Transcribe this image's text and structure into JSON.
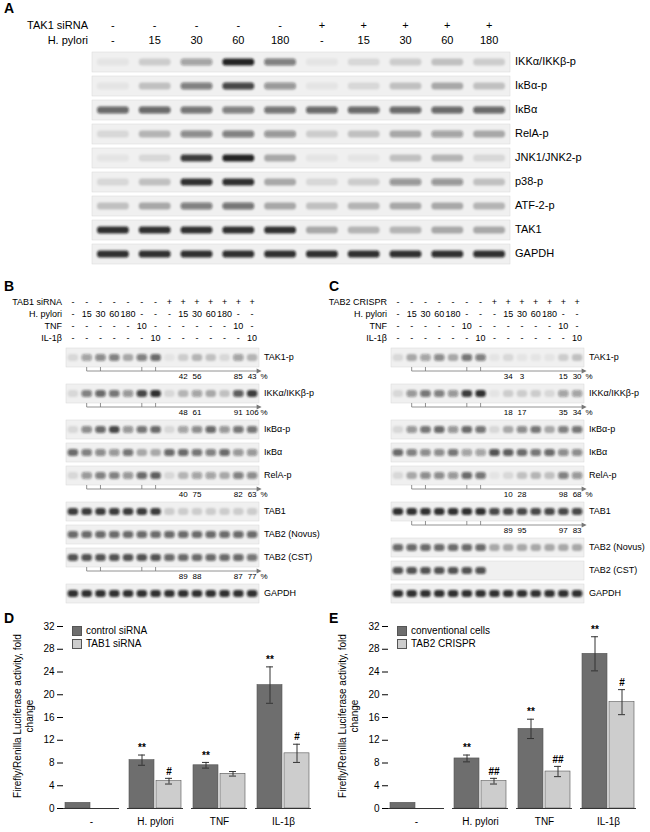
{
  "blots": {
    "panels": [
      {
        "label": "A",
        "conditions": [
          {
            "name": "TAK1 siRNA",
            "lanes": [
              "-",
              "-",
              "-",
              "-",
              "-",
              "+",
              "+",
              "+",
              "+",
              "+"
            ]
          },
          {
            "name": "H. pylori",
            "lanes": [
              "-",
              "15",
              "30",
              "60",
              "180",
              "-",
              "15",
              "30",
              "60",
              "180"
            ]
          }
        ],
        "rows": [
          {
            "name": "IKKα/IKKβ-p",
            "bands": [
              0.05,
              0.15,
              0.35,
              0.9,
              0.5,
              0.05,
              0.1,
              0.15,
              0.2,
              0.15
            ]
          },
          {
            "name": "IκBα-p",
            "bands": [
              0.05,
              0.2,
              0.5,
              0.75,
              0.4,
              0.05,
              0.1,
              0.2,
              0.3,
              0.2
            ]
          },
          {
            "name": "IκBα",
            "bands": [
              0.6,
              0.6,
              0.55,
              0.5,
              0.55,
              0.6,
              0.6,
              0.6,
              0.6,
              0.6
            ]
          },
          {
            "name": "RelA-p",
            "bands": [
              0.1,
              0.25,
              0.45,
              0.5,
              0.4,
              0.15,
              0.2,
              0.3,
              0.35,
              0.3
            ]
          },
          {
            "name": "JNK1/JNK2-p",
            "bands": [
              0.05,
              0.1,
              0.8,
              0.9,
              0.3,
              0.05,
              0.05,
              0.2,
              0.25,
              0.1
            ]
          },
          {
            "name": "p38-p",
            "bands": [
              0.1,
              0.2,
              0.85,
              0.85,
              0.3,
              0.1,
              0.15,
              0.4,
              0.4,
              0.2
            ]
          },
          {
            "name": "ATF-2-p",
            "bands": [
              0.2,
              0.3,
              0.5,
              0.55,
              0.3,
              0.2,
              0.25,
              0.3,
              0.3,
              0.25
            ]
          },
          {
            "name": "TAK1",
            "bands": [
              0.85,
              0.85,
              0.85,
              0.85,
              0.85,
              0.3,
              0.25,
              0.25,
              0.3,
              0.3
            ]
          },
          {
            "name": "GAPDH",
            "bands": [
              0.85,
              0.85,
              0.85,
              0.85,
              0.85,
              0.85,
              0.85,
              0.85,
              0.85,
              0.85
            ]
          }
        ]
      },
      {
        "label": "B",
        "conditions": [
          {
            "name": "TAB1 siRNA",
            "lanes": [
              "-",
              "-",
              "-",
              "-",
              "-",
              "-",
              "-",
              "+",
              "+",
              "+",
              "+",
              "+",
              "+",
              "+"
            ]
          },
          {
            "name": "H. pylori",
            "lanes": [
              "-",
              "15",
              "30",
              "60",
              "180",
              "-",
              "-",
              "-",
              "15",
              "30",
              "60",
              "180",
              "-",
              "-"
            ]
          },
          {
            "name": "TNF",
            "lanes": [
              "-",
              "-",
              "-",
              "-",
              "-",
              "10",
              "-",
              "-",
              "-",
              "-",
              "-",
              "-",
              "10",
              "-"
            ]
          },
          {
            "name": "IL-1β",
            "lanes": [
              "-",
              "-",
              "-",
              "-",
              "-",
              "-",
              "10",
              "-",
              "-",
              "-",
              "-",
              "-",
              "-",
              "10"
            ]
          }
        ],
        "rows": [
          {
            "name": "TAK1-p",
            "bands": [
              0.1,
              0.35,
              0.45,
              0.5,
              0.3,
              0.5,
              0.6,
              0.05,
              0.15,
              0.25,
              0.2,
              0.1,
              0.35,
              0.25
            ],
            "quantification": {
              "values": [
                null,
                null,
                null,
                null,
                null,
                null,
                null,
                null,
                42,
                56,
                null,
                null,
                85,
                43
              ],
              "unit": "%"
            }
          },
          {
            "name": "IKKα/IKKβ-p",
            "bands": [
              0.1,
              0.5,
              0.6,
              0.55,
              0.4,
              0.75,
              0.85,
              0.1,
              0.25,
              0.35,
              0.3,
              0.2,
              0.65,
              0.8
            ],
            "quantification": {
              "values": [
                null,
                null,
                null,
                null,
                null,
                null,
                null,
                null,
                48,
                61,
                null,
                null,
                91,
                106
              ],
              "unit": "%"
            }
          },
          {
            "name": "IκBα-p",
            "bands": [
              0.1,
              0.45,
              0.6,
              0.75,
              0.4,
              0.55,
              0.6,
              0.1,
              0.35,
              0.45,
              0.6,
              0.4,
              0.55,
              0.55
            ]
          },
          {
            "name": "IκBα",
            "bands": [
              0.6,
              0.5,
              0.45,
              0.4,
              0.55,
              0.3,
              0.3,
              0.6,
              0.6,
              0.55,
              0.5,
              0.6,
              0.4,
              0.4
            ]
          },
          {
            "name": "RelA-p",
            "bands": [
              0.1,
              0.4,
              0.5,
              0.5,
              0.4,
              0.6,
              0.65,
              0.1,
              0.25,
              0.35,
              0.35,
              0.3,
              0.5,
              0.45
            ],
            "quantification": {
              "values": [
                null,
                null,
                null,
                null,
                null,
                null,
                null,
                null,
                40,
                75,
                null,
                null,
                82,
                63
              ],
              "unit": "%"
            }
          },
          {
            "name": "TAB1",
            "bands": [
              0.8,
              0.8,
              0.8,
              0.8,
              0.8,
              0.8,
              0.8,
              0.15,
              0.15,
              0.15,
              0.15,
              0.15,
              0.15,
              0.15
            ]
          },
          {
            "name": "TAB2 (Novus)",
            "bands": [
              0.6,
              0.6,
              0.6,
              0.6,
              0.6,
              0.6,
              0.6,
              0.6,
              0.6,
              0.6,
              0.6,
              0.6,
              0.6,
              0.6
            ]
          },
          {
            "name": "TAB2 (CST)",
            "bands": [
              0.7,
              0.7,
              0.7,
              0.7,
              0.7,
              0.7,
              0.7,
              0.6,
              0.6,
              0.6,
              0.6,
              0.6,
              0.6,
              0.55
            ],
            "quantification": {
              "values": [
                null,
                null,
                null,
                null,
                null,
                null,
                null,
                null,
                89,
                88,
                null,
                null,
                87,
                77
              ],
              "unit": "%"
            }
          },
          {
            "name": "GAPDH",
            "bands": [
              0.85,
              0.85,
              0.85,
              0.85,
              0.85,
              0.85,
              0.85,
              0.85,
              0.85,
              0.85,
              0.85,
              0.85,
              0.85,
              0.85
            ]
          }
        ]
      },
      {
        "label": "C",
        "conditions": [
          {
            "name": "TAB2 CRISPR",
            "lanes": [
              "-",
              "-",
              "-",
              "-",
              "-",
              "-",
              "-",
              "+",
              "+",
              "+",
              "+",
              "+",
              "+",
              "+"
            ]
          },
          {
            "name": "H. pylori",
            "lanes": [
              "-",
              "15",
              "30",
              "60",
              "180",
              "-",
              "-",
              "-",
              "15",
              "30",
              "60",
              "180",
              "-",
              "-"
            ]
          },
          {
            "name": "TNF",
            "lanes": [
              "-",
              "-",
              "-",
              "-",
              "-",
              "10",
              "-",
              "-",
              "-",
              "-",
              "-",
              "-",
              "10",
              "-"
            ]
          },
          {
            "name": "IL-1β",
            "lanes": [
              "-",
              "-",
              "-",
              "-",
              "-",
              "-",
              "10",
              "-",
              "-",
              "-",
              "-",
              "-",
              "-",
              "10"
            ]
          }
        ],
        "rows": [
          {
            "name": "TAK1-p",
            "bands": [
              0.1,
              0.3,
              0.35,
              0.45,
              0.3,
              0.55,
              0.5,
              0.05,
              0.1,
              0.05,
              0.05,
              0.05,
              0.15,
              0.2
            ],
            "quantification": {
              "values": [
                null,
                null,
                null,
                null,
                null,
                null,
                null,
                null,
                34,
                3,
                null,
                null,
                15,
                30
              ],
              "unit": "%"
            }
          },
          {
            "name": "IKKα/IKKβ-p",
            "bands": [
              0.1,
              0.4,
              0.55,
              0.5,
              0.4,
              0.8,
              0.85,
              0.05,
              0.15,
              0.15,
              0.15,
              0.1,
              0.35,
              0.35
            ],
            "quantification": {
              "values": [
                null,
                null,
                null,
                null,
                null,
                null,
                null,
                null,
                18,
                17,
                null,
                null,
                35,
                34
              ],
              "unit": "%"
            }
          },
          {
            "name": "IκBα-p",
            "bands": [
              0.1,
              0.4,
              0.55,
              0.6,
              0.4,
              0.6,
              0.55,
              0.1,
              0.3,
              0.45,
              0.55,
              0.3,
              0.5,
              0.55
            ]
          },
          {
            "name": "IκBα",
            "bands": [
              0.6,
              0.5,
              0.45,
              0.45,
              0.55,
              0.35,
              0.35,
              0.7,
              0.65,
              0.6,
              0.55,
              0.6,
              0.45,
              0.45
            ]
          },
          {
            "name": "RelA-p",
            "bands": [
              0.1,
              0.3,
              0.45,
              0.45,
              0.4,
              0.6,
              0.55,
              0.05,
              0.1,
              0.2,
              0.25,
              0.2,
              0.5,
              0.4
            ],
            "quantification": {
              "values": [
                null,
                null,
                null,
                null,
                null,
                null,
                null,
                null,
                10,
                28,
                null,
                null,
                98,
                68
              ],
              "unit": "%"
            }
          },
          {
            "name": "TAB1",
            "bands": [
              0.85,
              0.85,
              0.85,
              0.85,
              0.85,
              0.85,
              0.85,
              0.75,
              0.75,
              0.75,
              0.75,
              0.75,
              0.75,
              0.75
            ],
            "quantification": {
              "values": [
                null,
                null,
                null,
                null,
                null,
                null,
                null,
                null,
                89,
                95,
                null,
                null,
                97,
                83
              ],
              "unit": null
            }
          },
          {
            "name": "TAB2 (Novus)",
            "bands": [
              0.6,
              0.6,
              0.6,
              0.6,
              0.6,
              0.6,
              0.6,
              0.3,
              0.3,
              0.3,
              0.3,
              0.3,
              0.3,
              0.3
            ]
          },
          {
            "name": "TAB2 (CST)",
            "bands": [
              0.7,
              0.7,
              0.7,
              0.7,
              0.7,
              0.7,
              0.7,
              0,
              0,
              0,
              0,
              0,
              0,
              0
            ]
          },
          {
            "name": "GAPDH",
            "bands": [
              0.85,
              0.85,
              0.85,
              0.85,
              0.85,
              0.85,
              0.85,
              0.85,
              0.85,
              0.85,
              0.85,
              0.85,
              0.85,
              0.85
            ]
          }
        ]
      }
    ]
  },
  "chart_data": [
    {
      "type": "bar",
      "title": "D",
      "ylabel": "Firefly/Renilla Luciferase activity, fold change",
      "categories": [
        "-",
        "H. pylori",
        "TNF",
        "IL-1β"
      ],
      "series": [
        {
          "name": "control siRNA",
          "color": "#6e6e6e",
          "values": [
            1,
            8.5,
            7.6,
            21.7
          ],
          "errors": [
            null,
            0.9,
            0.5,
            3.2
          ],
          "significance": [
            null,
            "**",
            "**",
            "**"
          ]
        },
        {
          "name": "TAB1 siRNA",
          "color": "#cdcdcd",
          "values": [
            null,
            4.8,
            6.1,
            9.7
          ],
          "errors": [
            null,
            0.5,
            0.4,
            1.6
          ],
          "significance": [
            null,
            "#",
            null,
            "#"
          ]
        }
      ],
      "ylim": [
        0,
        32
      ],
      "yticks": [
        0,
        4,
        8,
        12,
        16,
        20,
        24,
        28,
        32
      ],
      "legend": "top-left"
    },
    {
      "type": "bar",
      "title": "E",
      "ylabel": "Firefly/Renilla Luciferase activity, fold change",
      "categories": [
        "-",
        "H. pylori",
        "TNF",
        "IL-1β"
      ],
      "series": [
        {
          "name": "conventional  cells",
          "color": "#6e6e6e",
          "values": [
            1,
            8.8,
            14,
            27.2
          ],
          "errors": [
            null,
            0.6,
            1.7,
            3.0
          ],
          "significance": [
            null,
            "**",
            "**",
            "**"
          ]
        },
        {
          "name": "TAB2 CRISPR",
          "color": "#cdcdcd",
          "values": [
            null,
            4.8,
            6.5,
            18.7
          ],
          "errors": [
            null,
            0.5,
            0.9,
            2.2
          ],
          "significance": [
            null,
            "##",
            "##",
            "#"
          ]
        }
      ],
      "ylim": [
        0,
        32
      ],
      "yticks": [
        0,
        4,
        8,
        12,
        16,
        20,
        24,
        28,
        32
      ],
      "legend": "top-left"
    }
  ]
}
